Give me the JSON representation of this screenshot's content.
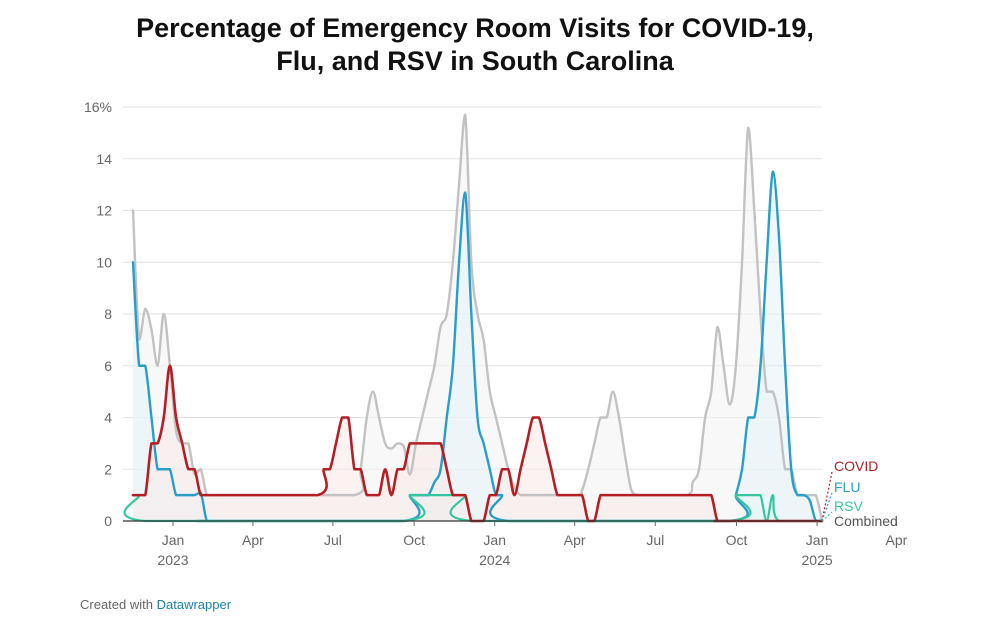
{
  "page": {
    "title_line1": "Percentage of Emergency Room Visits for COVID-19,",
    "title_line2": "Flu, and RSV in South Carolina",
    "footer_prefix": "Created with",
    "footer_link": "Datawrapper"
  },
  "colors": {
    "covid": "#b51f24",
    "flu": "#2a9ec9",
    "rsv": "#33c7a0",
    "combined": "#c2c2c2",
    "grid": "#e2e2e2"
  },
  "chart_data": {
    "type": "line",
    "title": "Percentage of Emergency Room Visits for COVID-19, Flu, and RSV in South Carolina",
    "x_unit": "weeks since 2022-11-19",
    "ylim": [
      0,
      16
    ],
    "y_ticks": [
      {
        "value": 0,
        "label": "0"
      },
      {
        "value": 2,
        "label": "2"
      },
      {
        "value": 4,
        "label": "4"
      },
      {
        "value": 6,
        "label": "6"
      },
      {
        "value": 8,
        "label": "8"
      },
      {
        "value": 10,
        "label": "10"
      },
      {
        "value": 12,
        "label": "12"
      },
      {
        "value": 14,
        "label": "14"
      },
      {
        "value": 16,
        "label": "16%"
      }
    ],
    "x_ticks": [
      {
        "value": 6.5,
        "label": "Jan",
        "sub": "2023"
      },
      {
        "value": 19.5,
        "label": "Apr",
        "sub": ""
      },
      {
        "value": 32.5,
        "label": "Jul",
        "sub": ""
      },
      {
        "value": 45.7,
        "label": "Oct",
        "sub": ""
      },
      {
        "value": 58.8,
        "label": "Jan",
        "sub": "2024"
      },
      {
        "value": 71.8,
        "label": "Apr",
        "sub": ""
      },
      {
        "value": 84.9,
        "label": "Jul",
        "sub": ""
      },
      {
        "value": 98.1,
        "label": "Oct",
        "sub": ""
      },
      {
        "value": 111.2,
        "label": "Jan",
        "sub": "2025"
      },
      {
        "value": 124.1,
        "label": "Apr",
        "sub": ""
      }
    ],
    "series": [
      {
        "name": "Combined",
        "key": "combined",
        "points": [
          [
            0,
            12
          ],
          [
            1,
            7
          ],
          [
            2,
            8.2
          ],
          [
            3,
            7.4
          ],
          [
            4,
            6
          ],
          [
            5,
            8
          ],
          [
            6,
            6
          ],
          [
            7,
            3.5
          ],
          [
            8,
            3
          ],
          [
            9,
            3
          ],
          [
            10,
            1.8
          ],
          [
            11,
            2
          ],
          [
            12,
            1
          ],
          [
            13,
            1
          ],
          [
            14,
            1
          ],
          [
            20,
            1
          ],
          [
            36,
            1
          ],
          [
            37,
            2
          ],
          [
            38,
            4
          ],
          [
            39,
            5
          ],
          [
            40,
            4
          ],
          [
            41,
            3
          ],
          [
            42,
            2.8
          ],
          [
            43,
            3
          ],
          [
            44,
            2.9
          ],
          [
            45,
            1.8
          ],
          [
            46,
            3
          ],
          [
            47,
            4
          ],
          [
            48,
            5
          ],
          [
            49,
            6
          ],
          [
            50,
            7.5
          ],
          [
            51,
            8
          ],
          [
            52,
            10
          ],
          [
            53,
            13
          ],
          [
            54,
            15.7
          ],
          [
            55,
            10
          ],
          [
            56,
            8
          ],
          [
            57,
            7
          ],
          [
            58,
            5
          ],
          [
            59,
            4
          ],
          [
            60,
            3
          ],
          [
            61,
            2
          ],
          [
            62,
            1.3
          ],
          [
            63,
            1
          ],
          [
            64,
            1
          ],
          [
            72,
            1
          ],
          [
            73,
            1.2
          ],
          [
            74,
            2
          ],
          [
            75,
            3
          ],
          [
            76,
            4
          ],
          [
            77,
            4
          ],
          [
            78,
            5
          ],
          [
            79,
            4
          ],
          [
            80,
            2.5
          ],
          [
            81,
            1.2
          ],
          [
            82,
            1
          ],
          [
            83,
            1
          ],
          [
            90,
            1
          ],
          [
            91,
            1.5
          ],
          [
            92,
            2
          ],
          [
            93,
            4
          ],
          [
            94,
            5
          ],
          [
            95,
            7.5
          ],
          [
            96,
            6
          ],
          [
            97,
            4.5
          ],
          [
            98,
            6
          ],
          [
            99,
            10
          ],
          [
            100,
            15.2
          ],
          [
            101,
            12
          ],
          [
            102,
            8
          ],
          [
            103,
            5
          ],
          [
            104,
            5
          ],
          [
            105,
            4
          ],
          [
            106,
            2
          ],
          [
            107,
            2
          ],
          [
            108,
            1
          ],
          [
            109,
            1
          ],
          [
            110,
            1
          ],
          [
            111,
            1
          ],
          [
            112,
            0
          ]
        ]
      },
      {
        "name": "FLU",
        "key": "flu",
        "points": [
          [
            0,
            10
          ],
          [
            1,
            6
          ],
          [
            2,
            6
          ],
          [
            3,
            4
          ],
          [
            4,
            2
          ],
          [
            5,
            2
          ],
          [
            6,
            2
          ],
          [
            7,
            1
          ],
          [
            8,
            1
          ],
          [
            9,
            1
          ],
          [
            10,
            1
          ],
          [
            11,
            1.1
          ],
          [
            12,
            0
          ],
          [
            13,
            0
          ],
          [
            44,
            0
          ],
          [
            45,
            1
          ],
          [
            46,
            1
          ],
          [
            47,
            1
          ],
          [
            48,
            1
          ],
          [
            49,
            1.5
          ],
          [
            50,
            2
          ],
          [
            51,
            4
          ],
          [
            52,
            6
          ],
          [
            53,
            10
          ],
          [
            54,
            12.7
          ],
          [
            55,
            8
          ],
          [
            56,
            4
          ],
          [
            57,
            3
          ],
          [
            58,
            2
          ],
          [
            59,
            1
          ],
          [
            60,
            1
          ],
          [
            61,
            0
          ],
          [
            97,
            0
          ],
          [
            98,
            1
          ],
          [
            99,
            2
          ],
          [
            100,
            4
          ],
          [
            101,
            4
          ],
          [
            102,
            6
          ],
          [
            103,
            10
          ],
          [
            104,
            13.5
          ],
          [
            105,
            11
          ],
          [
            106,
            6
          ],
          [
            107,
            2
          ],
          [
            108,
            1
          ],
          [
            109,
            1
          ],
          [
            110,
            0.8
          ],
          [
            111,
            0
          ],
          [
            112,
            0
          ]
        ]
      },
      {
        "name": "RSV",
        "key": "rsv",
        "points": [
          [
            0,
            1
          ],
          [
            1,
            1
          ],
          [
            2,
            0
          ],
          [
            44,
            0
          ],
          [
            45,
            1
          ],
          [
            46,
            1
          ],
          [
            47,
            1
          ],
          [
            48,
            1
          ],
          [
            49,
            1
          ],
          [
            50,
            1
          ],
          [
            51,
            1
          ],
          [
            52,
            1
          ],
          [
            53,
            1
          ],
          [
            54,
            1
          ],
          [
            55,
            0
          ],
          [
            97,
            0
          ],
          [
            98,
            1
          ],
          [
            99,
            1
          ],
          [
            100,
            1
          ],
          [
            101,
            1
          ],
          [
            102,
            1
          ],
          [
            103,
            0
          ],
          [
            104,
            1
          ],
          [
            105,
            0
          ],
          [
            112,
            0
          ]
        ]
      },
      {
        "name": "COVID",
        "key": "covid",
        "points": [
          [
            0,
            1
          ],
          [
            1,
            1
          ],
          [
            2,
            1
          ],
          [
            3,
            3
          ],
          [
            4,
            3
          ],
          [
            5,
            4
          ],
          [
            6,
            6
          ],
          [
            7,
            4
          ],
          [
            8,
            3
          ],
          [
            9,
            2
          ],
          [
            10,
            2
          ],
          [
            11,
            1
          ],
          [
            12,
            1
          ],
          [
            13,
            1
          ],
          [
            14,
            1
          ],
          [
            30,
            1
          ],
          [
            31,
            2
          ],
          [
            32,
            2
          ],
          [
            33,
            3
          ],
          [
            34,
            4
          ],
          [
            35,
            4
          ],
          [
            36,
            2
          ],
          [
            37,
            2
          ],
          [
            38,
            1
          ],
          [
            39,
            1
          ],
          [
            40,
            1
          ],
          [
            41,
            2
          ],
          [
            42,
            1
          ],
          [
            43,
            2
          ],
          [
            44,
            2
          ],
          [
            45,
            3
          ],
          [
            46,
            3
          ],
          [
            47,
            3
          ],
          [
            48,
            3
          ],
          [
            49,
            3
          ],
          [
            50,
            3
          ],
          [
            51,
            2
          ],
          [
            52,
            1
          ],
          [
            53,
            1
          ],
          [
            54,
            1
          ],
          [
            55,
            0
          ],
          [
            56,
            0
          ],
          [
            57,
            0
          ],
          [
            58,
            1
          ],
          [
            59,
            1
          ],
          [
            60,
            2
          ],
          [
            61,
            2
          ],
          [
            62,
            1
          ],
          [
            63,
            2
          ],
          [
            64,
            3
          ],
          [
            65,
            4
          ],
          [
            66,
            4
          ],
          [
            67,
            3
          ],
          [
            68,
            2
          ],
          [
            69,
            1
          ],
          [
            70,
            1
          ],
          [
            71,
            1
          ],
          [
            72,
            1
          ],
          [
            73,
            1
          ],
          [
            74,
            0
          ],
          [
            75,
            0
          ],
          [
            76,
            1
          ],
          [
            77,
            1
          ],
          [
            78,
            1
          ],
          [
            79,
            1
          ],
          [
            80,
            1
          ],
          [
            81,
            1
          ],
          [
            82,
            1
          ],
          [
            83,
            1
          ],
          [
            84,
            1
          ],
          [
            85,
            1
          ],
          [
            86,
            1
          ],
          [
            87,
            1
          ],
          [
            88,
            1
          ],
          [
            89,
            1
          ],
          [
            90,
            1
          ],
          [
            91,
            1
          ],
          [
            92,
            1
          ],
          [
            93,
            1
          ],
          [
            94,
            1
          ],
          [
            95,
            0
          ],
          [
            96,
            0
          ],
          [
            112,
            0
          ]
        ]
      }
    ],
    "legend": [
      {
        "key": "covid",
        "label": "COVID"
      },
      {
        "key": "flu",
        "label": "FLU"
      },
      {
        "key": "rsv",
        "label": "RSV"
      },
      {
        "key": "combined",
        "label": "Combined"
      }
    ]
  }
}
